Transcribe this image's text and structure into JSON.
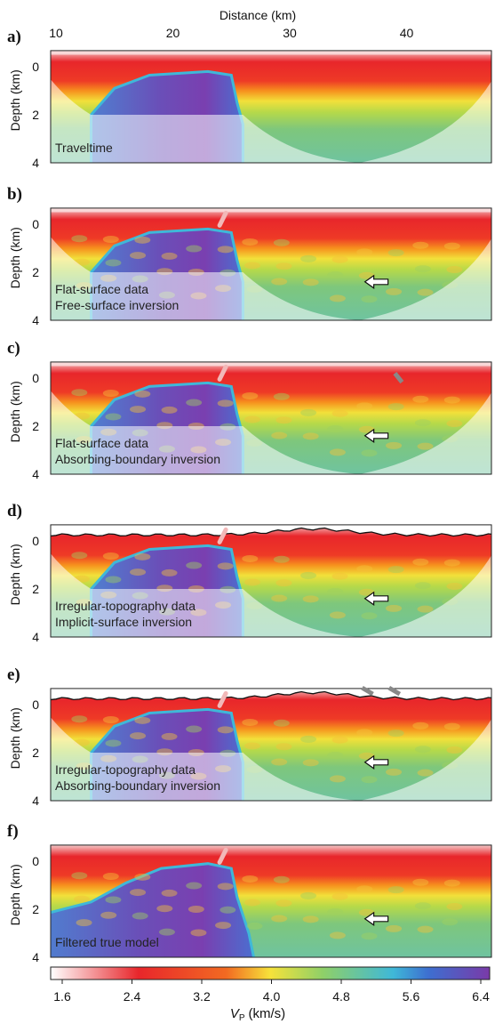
{
  "figure": {
    "x_axis": {
      "label": "Distance (km)",
      "ticks": [
        "10",
        "20",
        "30",
        "40"
      ]
    },
    "panels": [
      {
        "label": "a)",
        "y_axis": {
          "label": "Depth (km)",
          "ticks": [
            "0",
            "2",
            "4"
          ]
        },
        "caption": [
          "Traveltime"
        ]
      },
      {
        "label": "b)",
        "y_axis": {
          "label": "Depth (km)",
          "ticks": [
            "0",
            "2",
            "4"
          ]
        },
        "caption": [
          "Flat-surface data",
          "Free-surface inversion"
        ]
      },
      {
        "label": "c)",
        "y_axis": {
          "label": "Depth (km)",
          "ticks": [
            "0",
            "2",
            "4"
          ]
        },
        "caption": [
          "Flat-surface data",
          "Absorbing-boundary inversion"
        ]
      },
      {
        "label": "d)",
        "y_axis": {
          "label": "Depth (km)",
          "ticks": [
            "0",
            "2",
            "4"
          ]
        },
        "caption": [
          "Irregular-topography data",
          "Implicit-surface inversion"
        ]
      },
      {
        "label": "e)",
        "y_axis": {
          "label": "Depth (km)",
          "ticks": [
            "0",
            "2",
            "4"
          ]
        },
        "caption": [
          "Irregular-topography data",
          "Absorbing-boundary inversion"
        ]
      },
      {
        "label": "f)",
        "y_axis": {
          "label": "Depth (km)",
          "ticks": [
            "0",
            "2",
            "4"
          ]
        },
        "caption": [
          "Filtered true model"
        ]
      }
    ],
    "colorbar": {
      "ticks": [
        "1.6",
        "2.4",
        "3.2",
        "4.0",
        "4.8",
        "5.6",
        "6.4"
      ],
      "label": {
        "symbol": "V",
        "subscript": "P",
        "unit": "(km/s)"
      }
    }
  }
}
